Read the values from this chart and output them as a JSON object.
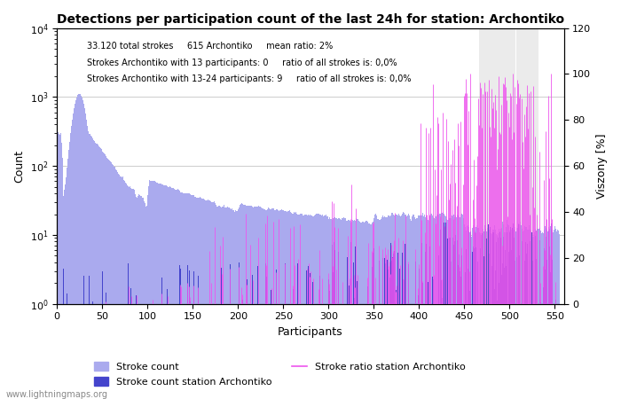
{
  "title": "Detections per participation count of the last 24h for station: Archontiko",
  "annotation_line1": "33.120 total strokes     615 Archontiko     mean ratio: 2%",
  "annotation_line2": "Strokes Archontiko with 13 participants: 0     ratio of all strokes is: 0,0%",
  "annotation_line3": "Strokes Archontiko with 13-24 participants: 9     ratio of all strokes is: 0,0%",
  "xlabel": "Participants",
  "ylabel_left": "Count",
  "ylabel_right": "Viszony [%]",
  "xlim": [
    0,
    560
  ],
  "ylim_log": [
    1,
    10000
  ],
  "ylim_right": [
    0,
    120
  ],
  "bar_color_total": "#aaaaee",
  "bar_color_station": "#4444cc",
  "line_color_ratio": "#ee55ee",
  "grid_color": "#cccccc",
  "gray_line_color": "#999999",
  "legend_labels": [
    "Stroke count",
    "Stroke count station Archontiko",
    "Stroke ratio station Archontiko"
  ],
  "watermark": "www.lightningmaps.org",
  "num_participants": 555,
  "seed": 123,
  "right_yticks": [
    0,
    20,
    40,
    60,
    80,
    100,
    120
  ],
  "xticks": [
    0,
    50,
    100,
    150,
    200,
    250,
    300,
    350,
    400,
    450,
    500,
    550
  ],
  "figsize": [
    7.0,
    4.5
  ],
  "dpi": 100
}
